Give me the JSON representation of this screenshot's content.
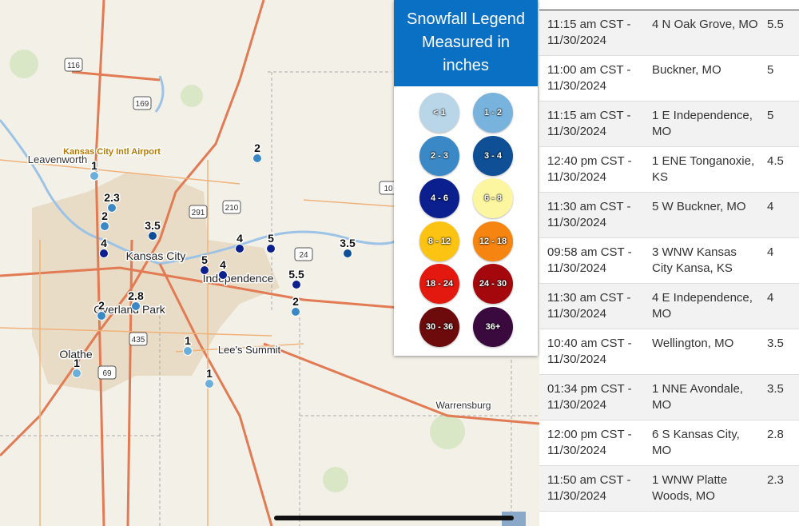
{
  "legend": {
    "title": "Snowfall Legend Measured in inches",
    "items": [
      {
        "label": "< 1",
        "color": "#b9d6e9"
      },
      {
        "label": "1 - 2",
        "color": "#78b3de"
      },
      {
        "label": "2 - 3",
        "color": "#3a89c6"
      },
      {
        "label": "3 - 4",
        "color": "#0f4f96"
      },
      {
        "label": "4 - 6",
        "color": "#0c1f8e"
      },
      {
        "label": "6 - 8",
        "color": "#fdf6a0"
      },
      {
        "label": "8 - 12",
        "color": "#fdc313"
      },
      {
        "label": "12 - 18",
        "color": "#f58410"
      },
      {
        "label": "18 - 24",
        "color": "#e3190f"
      },
      {
        "label": "24 - 30",
        "color": "#a5080c"
      },
      {
        "label": "30 - 36",
        "color": "#6d0a0c"
      },
      {
        "label": "36+",
        "color": "#3a0a3e"
      }
    ]
  },
  "map": {
    "places": [
      "Kansas City Intl Airport",
      "Leavenworth",
      "Kansas City",
      "Independence",
      "Overland Park",
      "Olathe",
      "Lee's Summit",
      "Warrensburg"
    ],
    "road_shields": [
      "116",
      "169",
      "291",
      "210",
      "24",
      "435",
      "69",
      "10"
    ],
    "reports": [
      {
        "value": 1,
        "color": "#6aaedb"
      },
      {
        "value": 2.3,
        "color": "#3a89c6"
      },
      {
        "value": 2,
        "color": "#3a89c6"
      },
      {
        "value": 4,
        "color": "#0c1f8e"
      },
      {
        "value": 3.5,
        "color": "#0f4f96"
      },
      {
        "value": 2,
        "color": "#3a89c6"
      },
      {
        "value": 4,
        "color": "#0c1f8e"
      },
      {
        "value": 5,
        "color": "#0c1f8e"
      },
      {
        "value": 3.5,
        "color": "#0f4f96"
      },
      {
        "value": 5,
        "color": "#0c1f8e"
      },
      {
        "value": 4,
        "color": "#0c1f8e"
      },
      {
        "value": 5.5,
        "color": "#0c1f8e"
      },
      {
        "value": 2,
        "color": "#3a89c6"
      },
      {
        "value": 2,
        "color": "#3a89c6"
      },
      {
        "value": 2.8,
        "color": "#3a89c6"
      },
      {
        "value": 1,
        "color": "#6aaedb"
      },
      {
        "value": 1,
        "color": "#6aaedb"
      },
      {
        "value": 1,
        "color": "#6aaedb"
      }
    ]
  },
  "table": {
    "rows": [
      [
        "11:15 am CST - 11/30/2024",
        "4 N Oak Grove, MO",
        "5.5"
      ],
      [
        "11:00 am CST - 11/30/2024",
        "Buckner, MO",
        "5"
      ],
      [
        "11:15 am CST - 11/30/2024",
        "1 E Independence, MO",
        "5"
      ],
      [
        "12:40 pm CST - 11/30/2024",
        "1 ENE Tonganoxie, KS",
        "4.5"
      ],
      [
        "11:30 am CST - 11/30/2024",
        "5 W Buckner, MO",
        "4"
      ],
      [
        "09:58 am CST - 11/30/2024",
        "3 WNW Kansas City Kansa, KS",
        "4"
      ],
      [
        "11:30 am CST - 11/30/2024",
        "4 E Independence, MO",
        "4"
      ],
      [
        "10:40 am CST - 11/30/2024",
        "Wellington, MO",
        "3.5"
      ],
      [
        "01:34 pm CST - 11/30/2024",
        "1 NNE Avondale, MO",
        "3.5"
      ],
      [
        "12:00 pm CST - 11/30/2024",
        "6 S Kansas City, MO",
        "2.8"
      ],
      [
        "11:50 am CST - 11/30/2024",
        "1 WNW Platte Woods, MO",
        "2.3"
      ]
    ]
  }
}
